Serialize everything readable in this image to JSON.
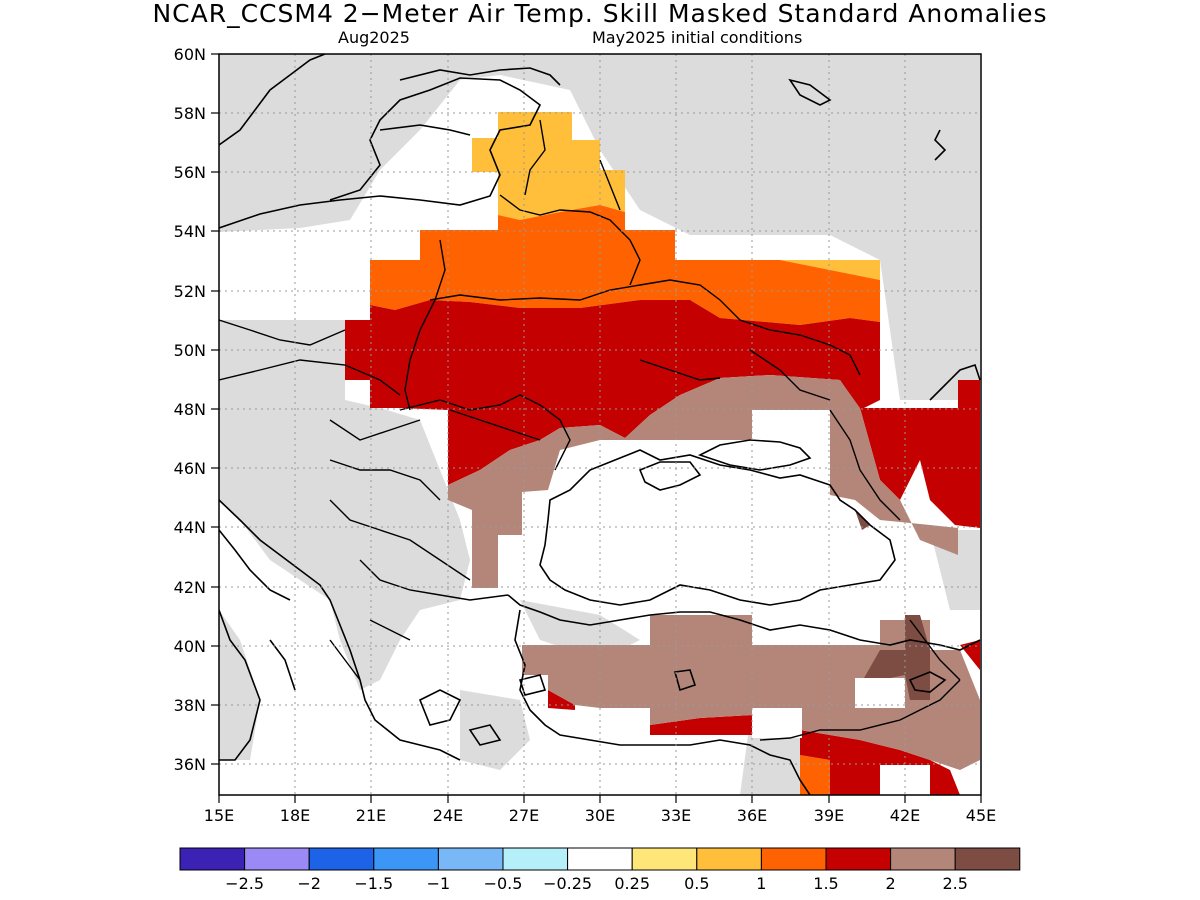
{
  "title": "NCAR_CCSM4 2−Meter Air Temp. Skill Masked Standard Anomalies",
  "subtitle_left": "Aug2025",
  "subtitle_right": "May2025 initial conditions",
  "lat_ticks": [
    "60N",
    "58N",
    "56N",
    "54N",
    "52N",
    "50N",
    "48N",
    "46N",
    "44N",
    "42N",
    "40N",
    "38N",
    "36N"
  ],
  "lon_ticks": [
    "15E",
    "18E",
    "21E",
    "24E",
    "27E",
    "30E",
    "33E",
    "36E",
    "39E",
    "42E",
    "45E"
  ],
  "colorbar": {
    "colors": [
      "#3b22b4",
      "#9b8af5",
      "#1d63e8",
      "#3c96f5",
      "#78b8f7",
      "#b4effa",
      "#ffffff",
      "#ffe678",
      "#ffbf3a",
      "#ff6200",
      "#c40000",
      "#b48679",
      "#7d4d44"
    ],
    "labels": [
      "−2.5",
      "−2",
      "−1.5",
      "−1",
      "−0.5",
      "−0.25",
      "0.25",
      "0.5",
      "1",
      "1.5",
      "2",
      "2.5"
    ]
  },
  "colors": {
    "masked_gray": "#dcdcdc",
    "very_dark_brown": "#7d4d44"
  }
}
